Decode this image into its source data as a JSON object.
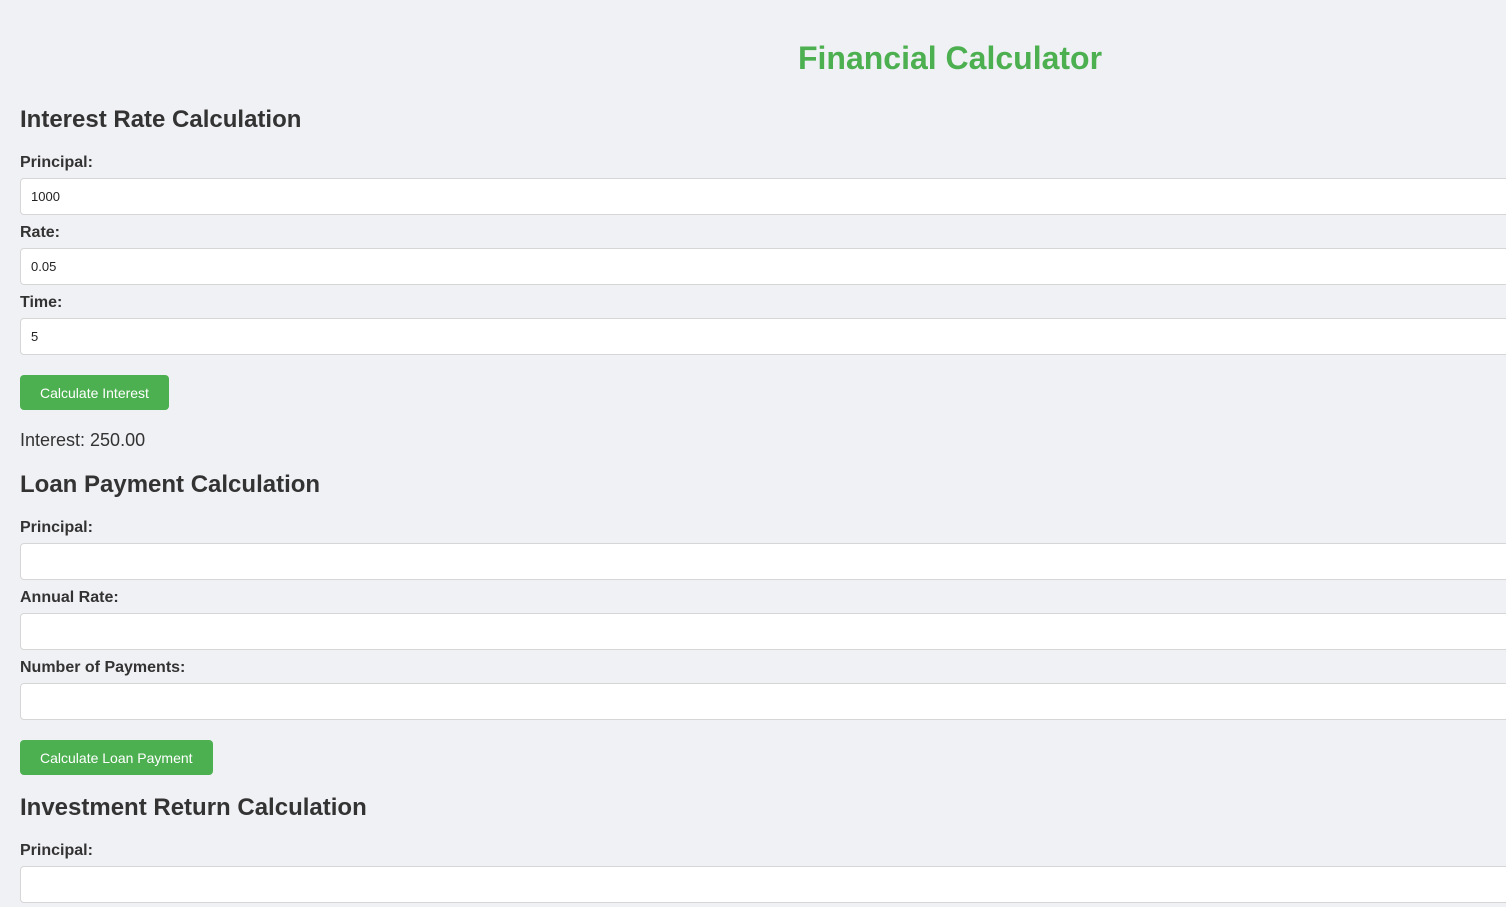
{
  "app": {
    "title": "Financial Calculator"
  },
  "interest": {
    "heading": "Interest Rate Calculation",
    "principal_label": "Principal:",
    "principal_value": "1000",
    "rate_label": "Rate:",
    "rate_value": "0.05",
    "time_label": "Time:",
    "time_value": "5",
    "button_label": "Calculate Interest",
    "result_text": "Interest: 250.00"
  },
  "loan": {
    "heading": "Loan Payment Calculation",
    "principal_label": "Principal:",
    "principal_value": "",
    "annual_rate_label": "Annual Rate:",
    "annual_rate_value": "",
    "payments_label": "Number of Payments:",
    "payments_value": "",
    "button_label": "Calculate Loan Payment"
  },
  "investment": {
    "heading": "Investment Return Calculation",
    "principal_label": "Principal:",
    "principal_value": ""
  },
  "colors": {
    "accent": "#4caf50",
    "background": "#f0f1f5",
    "text": "#333333"
  }
}
